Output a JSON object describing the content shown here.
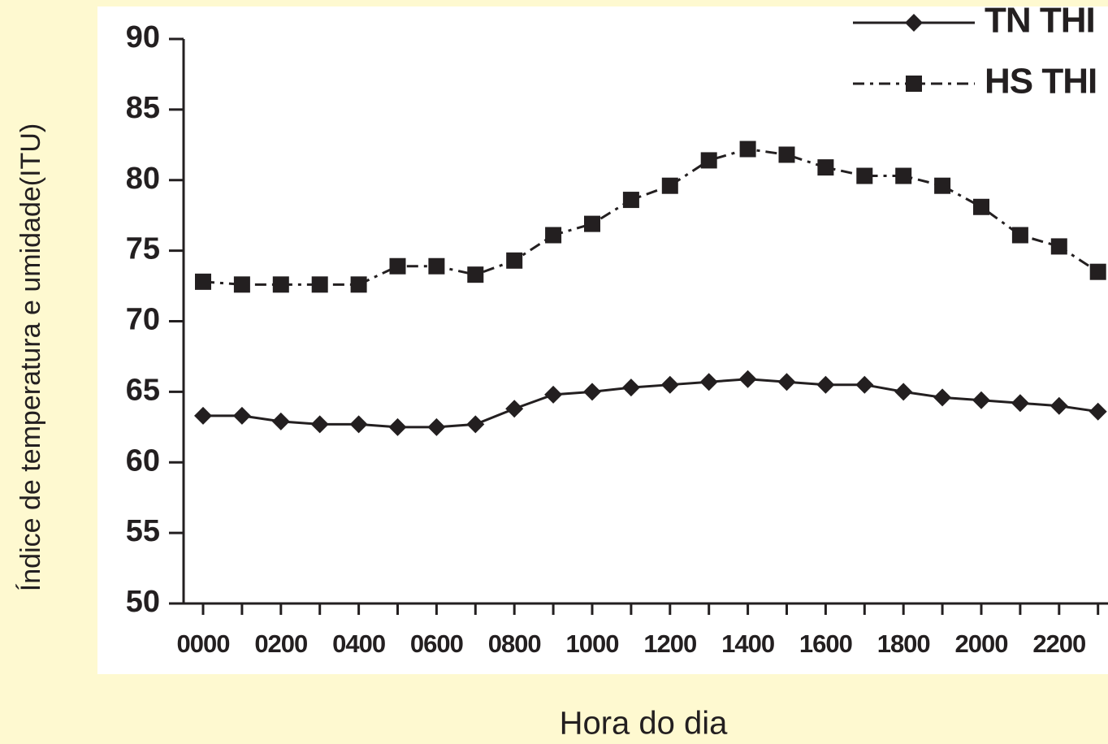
{
  "chart_data": {
    "type": "line",
    "y_label": "Índice de temperatura e umidade(ITU)",
    "x_label": "Hora do dia",
    "categories": [
      "0000",
      null,
      "0200",
      null,
      "0400",
      null,
      "0600",
      null,
      "0800",
      null,
      "1000",
      null,
      "1200",
      null,
      "1400",
      null,
      "1600",
      null,
      "1800",
      null,
      "2000",
      null,
      "2200",
      null
    ],
    "series": [
      {
        "name": "TN THI",
        "color": "#231f20",
        "line_style": "solid",
        "marker": "diamond",
        "values": [
          63.3,
          63.3,
          62.9,
          62.7,
          62.7,
          62.5,
          62.5,
          62.7,
          63.8,
          64.8,
          65.0,
          65.3,
          65.5,
          65.7,
          65.9,
          65.7,
          65.5,
          65.5,
          65.0,
          64.6,
          64.4,
          64.2,
          64.0,
          63.6
        ]
      },
      {
        "name": "HS THI",
        "color": "#231f20",
        "line_style": "dashdot",
        "marker": "square",
        "values": [
          72.8,
          72.6,
          72.6,
          72.6,
          72.6,
          73.9,
          73.9,
          73.3,
          74.3,
          76.1,
          76.9,
          78.6,
          79.6,
          81.4,
          82.2,
          81.8,
          80.9,
          80.3,
          80.3,
          79.6,
          78.1,
          76.1,
          75.3,
          73.5
        ]
      }
    ],
    "ylim": [
      50,
      90
    ],
    "yticks": [
      50,
      55,
      60,
      65,
      70,
      75,
      80,
      85,
      90
    ],
    "legend": "top-right",
    "grid": false
  }
}
